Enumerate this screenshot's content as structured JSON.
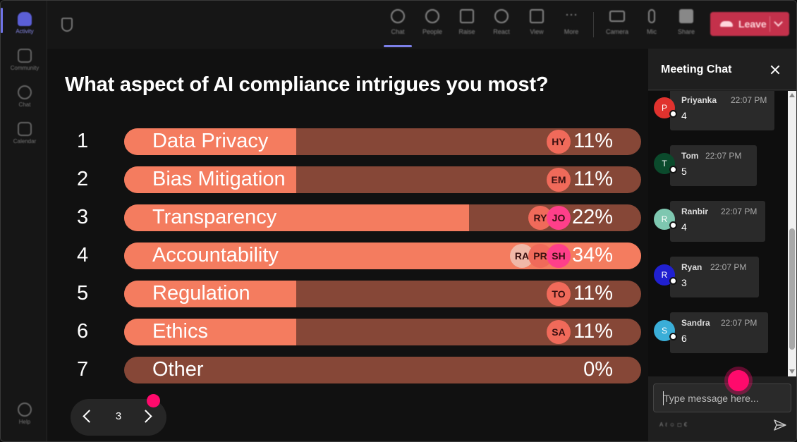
{
  "rail": {
    "items": [
      {
        "label": "Activity"
      },
      {
        "label": "Community"
      },
      {
        "label": "Chat"
      },
      {
        "label": "Calendar"
      },
      {
        "label": "Help"
      }
    ]
  },
  "toolbar": {
    "buttons": [
      {
        "label": "Chat",
        "icon": "chat-icon"
      },
      {
        "label": "People",
        "icon": "people-icon"
      },
      {
        "label": "Raise",
        "icon": "hand-icon"
      },
      {
        "label": "React",
        "icon": "smile-icon"
      },
      {
        "label": "View",
        "icon": "grid-icon"
      },
      {
        "label": "More",
        "icon": "more-icon"
      },
      {
        "label": "Camera",
        "icon": "camera-icon"
      },
      {
        "label": "Mic",
        "icon": "mic-icon"
      },
      {
        "label": "Share",
        "icon": "share-icon"
      }
    ],
    "leave_label": "Leave"
  },
  "poll": {
    "question": "What aspect of AI compliance intrigues you most?",
    "options": [
      {
        "num": "1",
        "label": "Data Privacy",
        "pct_text": "11%",
        "fraction": 0.11,
        "avatars": [
          "HY"
        ]
      },
      {
        "num": "2",
        "label": "Bias Mitigation",
        "pct_text": "11%",
        "fraction": 0.11,
        "avatars": [
          "EM"
        ]
      },
      {
        "num": "3",
        "label": "Transparency",
        "pct_text": "22%",
        "fraction": 0.22,
        "avatars": [
          "RY",
          "JO"
        ]
      },
      {
        "num": "4",
        "label": "Accountability",
        "pct_text": "34%",
        "fraction": 0.34,
        "avatars": [
          "RA",
          "PR",
          "SH"
        ]
      },
      {
        "num": "5",
        "label": "Regulation",
        "pct_text": "11%",
        "fraction": 0.11,
        "avatars": [
          "TO"
        ]
      },
      {
        "num": "6",
        "label": "Ethics",
        "pct_text": "11%",
        "fraction": 0.11,
        "avatars": [
          "SA"
        ]
      },
      {
        "num": "7",
        "label": "Other",
        "pct_text": "0%",
        "fraction": 0,
        "avatars": []
      }
    ]
  },
  "pager": {
    "page": "3"
  },
  "chat": {
    "title": "Meeting Chat",
    "messages": [
      {
        "initial": "P",
        "name": "Priyanka",
        "time": "22:07 PM",
        "text": "4",
        "color": "#e0322e"
      },
      {
        "initial": "T",
        "name": "Tom",
        "time": "22:07 PM",
        "text": "5",
        "color": "#0b4a2c"
      },
      {
        "initial": "R",
        "name": "Ranbir",
        "time": "22:07 PM",
        "text": "4",
        "color": "#7ec7b0"
      },
      {
        "initial": "R",
        "name": "Ryan",
        "time": "22:07 PM",
        "text": "3",
        "color": "#2020d0"
      },
      {
        "initial": "S",
        "name": "Sandra",
        "time": "22:07 PM",
        "text": "6",
        "color": "#3aaed8"
      }
    ],
    "input_placeholder": "Type message here..."
  }
}
